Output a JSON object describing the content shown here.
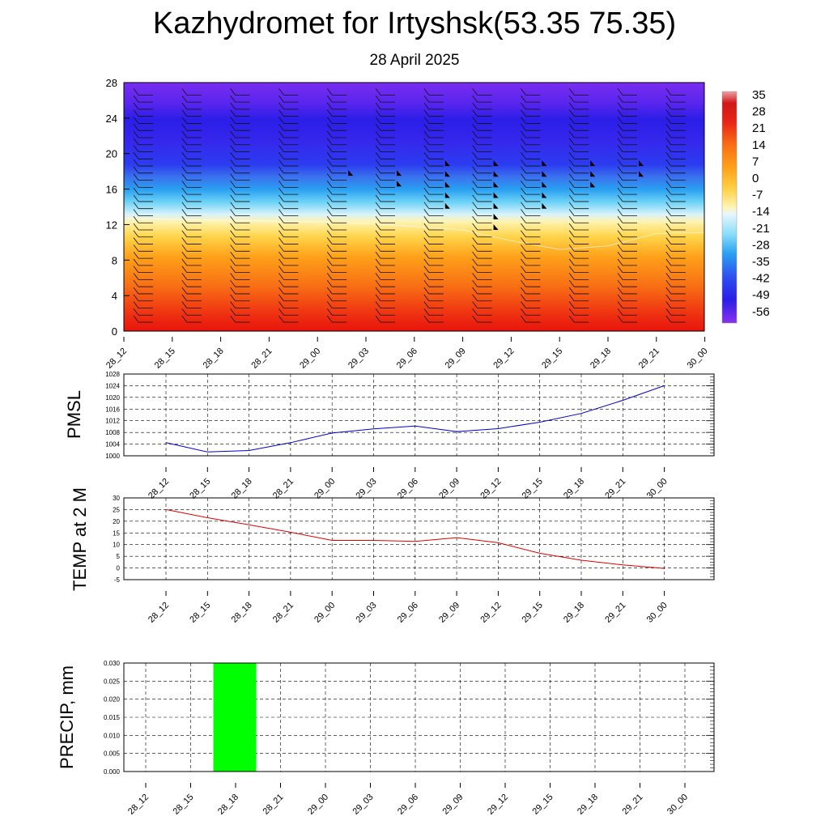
{
  "page": {
    "title": "Kazhydromet for Irtyshsk(53.35 75.35)",
    "subtitle": "28 April 2025"
  },
  "chart_data": [
    {
      "type": "heatmap",
      "name": "upper-air time section",
      "x_ticks": [
        "28_12",
        "28_15",
        "28_18",
        "28_21",
        "29_00",
        "29_03",
        "29_06",
        "29_09",
        "29_12",
        "29_15",
        "29_18",
        "29_21",
        "30_00"
      ],
      "y_ticks": [
        "0",
        "4",
        "8",
        "12",
        "16",
        "20",
        "24",
        "28"
      ],
      "ylim": [
        0,
        28
      ],
      "colorbar_labels": [
        "35",
        "28",
        "21",
        "14",
        "7",
        "0",
        "-7",
        "-14",
        "-21",
        "-28",
        "-35",
        "-42",
        "-49",
        "-56"
      ],
      "freezing_level": [
        12.7,
        12.6,
        12.5,
        12.4,
        12.3,
        12.1,
        11.8,
        11.4,
        10.2,
        9.2,
        9.6,
        11.0,
        11.1
      ],
      "strong_wind_flags": [
        [],
        [],
        [],
        [],
        [
          17.5
        ],
        [
          17.5,
          16.3
        ],
        [
          18.6,
          17.4,
          16.2,
          15.0,
          13.8
        ],
        [
          18.6,
          17.4,
          16.2,
          15.0,
          13.8,
          12.6,
          11.4
        ],
        [
          18.6,
          17.4,
          16.2,
          15.0,
          13.8
        ],
        [
          18.6,
          17.4,
          16.2
        ],
        [
          18.6,
          17.4
        ],
        [],
        []
      ]
    },
    {
      "type": "line",
      "ylabel": "PMSL",
      "x": [
        "28_12",
        "28_15",
        "28_18",
        "28_21",
        "29_00",
        "29_03",
        "29_06",
        "29_09",
        "29_12",
        "29_15",
        "29_18",
        "29_21",
        "30_00"
      ],
      "y_ticks": [
        "1028",
        "1024",
        "1020",
        "1016",
        "1012",
        "1008",
        "1004",
        "1000"
      ],
      "ylim": [
        1000,
        1028
      ],
      "series": [
        {
          "color": "#0000cc",
          "values": [
            1004.5,
            1001.3,
            1001.8,
            1004.5,
            1007.8,
            1009.2,
            1010.2,
            1008.3,
            1009.3,
            1011.5,
            1014.5,
            1019.0,
            1024.0
          ]
        }
      ]
    },
    {
      "type": "line",
      "ylabel": "TEMP at 2 M",
      "x": [
        "28_12",
        "28_15",
        "28_18",
        "28_21",
        "29_00",
        "29_03",
        "29_06",
        "29_09",
        "29_12",
        "29_15",
        "29_18",
        "29_21",
        "30_00"
      ],
      "y_ticks": [
        "30",
        "25",
        "20",
        "15",
        "10",
        "5",
        "0",
        "-5"
      ],
      "ylim": [
        -5,
        30
      ],
      "series": [
        {
          "color": "#dd0000",
          "values": [
            25.0,
            21.5,
            18.5,
            15.3,
            11.8,
            11.8,
            11.4,
            13.0,
            10.8,
            6.3,
            3.3,
            1.3,
            -0.2
          ]
        }
      ]
    },
    {
      "type": "bar",
      "ylabel": "PRECIP, mm",
      "categories": [
        "28_12",
        "28_15",
        "28_18",
        "28_21",
        "29_00",
        "29_03",
        "29_06",
        "29_09",
        "29_12",
        "29_15",
        "29_18",
        "29_21",
        "30_00"
      ],
      "y_ticks": [
        "0.030",
        "0.025",
        "0.020",
        "0.015",
        "0.010",
        "0.005",
        "0.000"
      ],
      "ylim": [
        0,
        0.03
      ],
      "values": [
        0,
        0,
        0.03,
        0,
        0,
        0,
        0,
        0,
        0,
        0,
        0,
        0,
        0
      ],
      "bar_color": "#00ff00"
    }
  ]
}
